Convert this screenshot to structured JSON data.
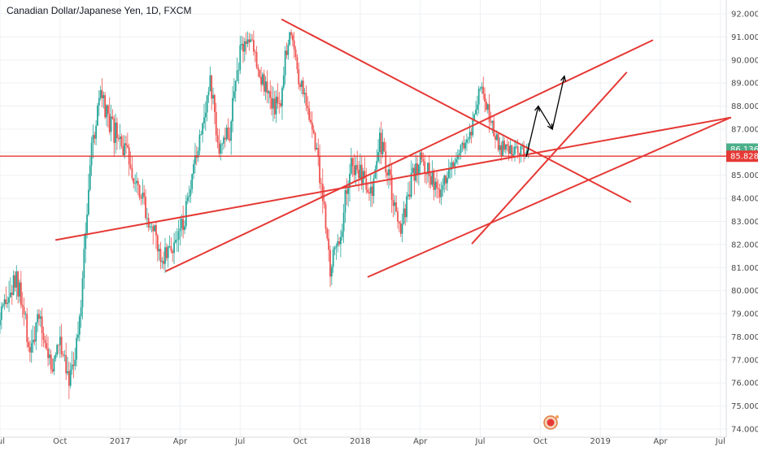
{
  "chart_data": {
    "type": "candlestick",
    "title": "Canadian Dollar/Japanese Yen, 1D, FXCM",
    "y_axis": {
      "position": "right",
      "ticks": [
        "74.000",
        "75.000",
        "76.000",
        "77.000",
        "78.000",
        "79.000",
        "80.000",
        "81.000",
        "82.000",
        "83.000",
        "84.000",
        "85.000",
        "86.000",
        "87.000",
        "88.000",
        "89.000",
        "90.000",
        "91.000",
        "92.000"
      ],
      "range": [
        73.8,
        92.45
      ]
    },
    "x_axis": {
      "ticks": [
        "Jul",
        "Oct",
        "2017",
        "Apr",
        "Jul",
        "Oct",
        "2018",
        "Apr",
        "Jul",
        "Oct",
        "2019",
        "Apr",
        "Jul"
      ],
      "tick_months": [
        0,
        3,
        6,
        9,
        12,
        15,
        18,
        21,
        24,
        27,
        30,
        33,
        36
      ],
      "month_range": [
        -0.1,
        36.3
      ]
    },
    "grid": true,
    "price_badges": [
      {
        "label": "86.136",
        "value": 86.136,
        "color": "#4caf8a"
      },
      {
        "label": "85.828",
        "value": 85.828,
        "color": "#e53935"
      }
    ],
    "horizontal_line": {
      "value": 85.828,
      "color": "#e53935"
    },
    "trend_lines": [
      {
        "from": [
          2.8,
          82.2
        ],
        "to": [
          36.5,
          87.5
        ],
        "color": "#e53935"
      },
      {
        "from": [
          8.3,
          80.85
        ],
        "to": [
          32.6,
          90.85
        ],
        "color": "#e53935"
      },
      {
        "from": [
          18.4,
          80.6
        ],
        "to": [
          36.5,
          87.5
        ],
        "color": "#e53935"
      },
      {
        "from": [
          14.1,
          91.75
        ],
        "to": [
          31.5,
          83.85
        ],
        "color": "#e53935"
      },
      {
        "from": [
          23.6,
          82.05
        ],
        "to": [
          31.3,
          89.45
        ],
        "color": "#e53935"
      }
    ],
    "projection_arrows": [
      {
        "points": [
          [
            26.3,
            85.8
          ],
          [
            26.9,
            88.0
          ],
          [
            27.6,
            87.0
          ],
          [
            28.2,
            89.3
          ]
        ],
        "color": "#000000"
      }
    ],
    "price_series": {
      "months": [
        0,
        0.8,
        1.5,
        2.0,
        2.6,
        3.0,
        3.5,
        4.0,
        4.2,
        4.5,
        5.0,
        5.5,
        6.0,
        6.5,
        7.0,
        7.5,
        8.0,
        8.5,
        9.0,
        9.5,
        10.0,
        10.5,
        11.0,
        11.5,
        12.0,
        12.5,
        13.0,
        13.5,
        14.0,
        14.2,
        14.5,
        15.0,
        15.5,
        16.0,
        16.5,
        17.0,
        17.5,
        18.0,
        18.5,
        19.0,
        19.5,
        20.0,
        20.5,
        21.0,
        21.5,
        22.0,
        22.5,
        23.0,
        23.5,
        24.0,
        24.5,
        25.0,
        25.5,
        26.0,
        26.2,
        26.4
      ],
      "close": [
        78.5,
        80.5,
        77.5,
        78.8,
        76.5,
        78.0,
        76.2,
        78.6,
        82.0,
        85.5,
        88.5,
        87.0,
        86.5,
        85.5,
        84.5,
        83.0,
        81.5,
        81.8,
        82.5,
        84.0,
        87.0,
        89.0,
        86.0,
        87.0,
        90.5,
        91.0,
        89.5,
        88.0,
        88.2,
        90.0,
        91.3,
        89.0,
        87.5,
        85.0,
        81.0,
        82.5,
        85.5,
        85.2,
        84.0,
        86.5,
        84.5,
        82.5,
        84.5,
        85.8,
        85.0,
        84.0,
        85.5,
        86.2,
        86.8,
        88.8,
        87.5,
        86.2,
        86.1,
        86.1,
        86.13,
        86.136
      ],
      "high": [
        80.5,
        82.0,
        79.5,
        80.0,
        78.5,
        79.5,
        78.0,
        79.8,
        84.0,
        87.0,
        89.2,
        89.0,
        88.0,
        87.0,
        86.0,
        85.0,
        83.5,
        83.0,
        84.0,
        85.5,
        88.5,
        89.8,
        88.0,
        88.5,
        91.3,
        91.6,
        90.5,
        89.5,
        89.8,
        91.2,
        91.6,
        90.3,
        89.0,
        87.0,
        83.0,
        84.0,
        86.8,
        86.6,
        85.5,
        87.2,
        86.0,
        84.0,
        85.6,
        86.8,
        86.6,
        85.8,
        86.7,
        86.9,
        87.4,
        89.2,
        89.0,
        87.6,
        86.6,
        86.5,
        86.5,
        86.4
      ],
      "low": [
        76.8,
        78.5,
        76.0,
        77.2,
        75.4,
        76.5,
        74.8,
        77.0,
        80.5,
        83.5,
        86.5,
        85.5,
        85.0,
        84.0,
        83.0,
        81.5,
        80.6,
        80.7,
        81.0,
        82.5,
        85.5,
        87.0,
        85.0,
        85.5,
        88.5,
        89.5,
        88.0,
        86.8,
        86.8,
        88.5,
        89.8,
        87.8,
        86.5,
        83.5,
        80.6,
        81.0,
        83.5,
        83.8,
        82.5,
        84.5,
        83.0,
        81.9,
        82.5,
        84.2,
        84.0,
        83.6,
        84.5,
        85.2,
        85.6,
        87.2,
        86.5,
        85.5,
        85.4,
        85.6,
        85.8,
        85.8
      ]
    },
    "watermark_icon": "tradingview-flag-logo"
  }
}
